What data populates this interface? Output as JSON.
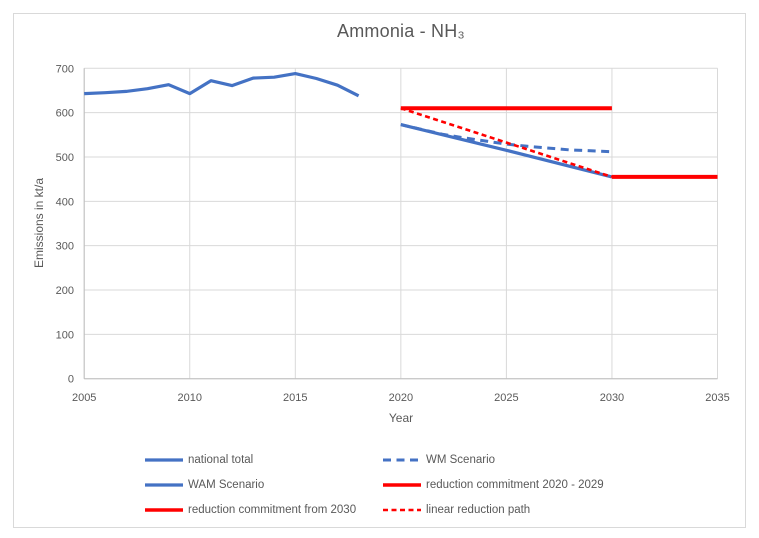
{
  "chart_data": {
    "type": "line",
    "title": "Ammonia - NH₃",
    "xlabel": "Year",
    "ylabel": "Emissions in kt/a",
    "xlim": [
      2005,
      2035
    ],
    "ylim": [
      0,
      700
    ],
    "x_ticks": [
      2005,
      2010,
      2015,
      2020,
      2025,
      2030,
      2035
    ],
    "y_ticks": [
      0,
      100,
      200,
      300,
      400,
      500,
      600,
      700
    ],
    "grid": true,
    "legend_position": "bottom",
    "colors": {
      "series_blue": "#4472C4",
      "series_red": "#FF0000",
      "gridline": "#D9D9D9",
      "axis_line": "#BFBFBF",
      "text": "#595959",
      "chart_border": "#D9D9D9",
      "background": "#FFFFFF"
    },
    "series": [
      {
        "name": "national total",
        "color": "#4472C4",
        "line_style": "solid",
        "stroke_width": 3.2,
        "x": [
          2005,
          2006,
          2007,
          2008,
          2009,
          2010,
          2011,
          2012,
          2013,
          2014,
          2015,
          2016,
          2017,
          2018
        ],
        "y": [
          643,
          645,
          648,
          654,
          663,
          643,
          672,
          661,
          678,
          680,
          688,
          677,
          662,
          638
        ]
      },
      {
        "name": "WM Scenario",
        "color": "#4472C4",
        "line_style": "dashed",
        "stroke_width": 3,
        "x": [
          2020,
          2021,
          2022,
          2023,
          2024,
          2025,
          2026,
          2027,
          2028,
          2029,
          2030
        ],
        "y": [
          573,
          562,
          551,
          543,
          536,
          529,
          524,
          520,
          516,
          514,
          512
        ]
      },
      {
        "name": "WAM Scenario",
        "color": "#4472C4",
        "line_style": "solid",
        "stroke_width": 3.2,
        "x": [
          2020,
          2025,
          2030
        ],
        "y": [
          573,
          515,
          455
        ]
      },
      {
        "name": "reduction commitment 2020 - 2029",
        "color": "#FF0000",
        "line_style": "solid",
        "stroke_width": 4,
        "x": [
          2020,
          2030
        ],
        "y": [
          610,
          610
        ]
      },
      {
        "name": "reduction commitment from 2030",
        "color": "#FF0000",
        "line_style": "solid",
        "stroke_width": 4,
        "x": [
          2030,
          2035
        ],
        "y": [
          455,
          455
        ]
      },
      {
        "name": "linear reduction path",
        "color": "#FF0000",
        "line_style": "dashed-small",
        "stroke_width": 2.6,
        "x": [
          2020,
          2030
        ],
        "y": [
          610,
          455
        ]
      }
    ]
  }
}
